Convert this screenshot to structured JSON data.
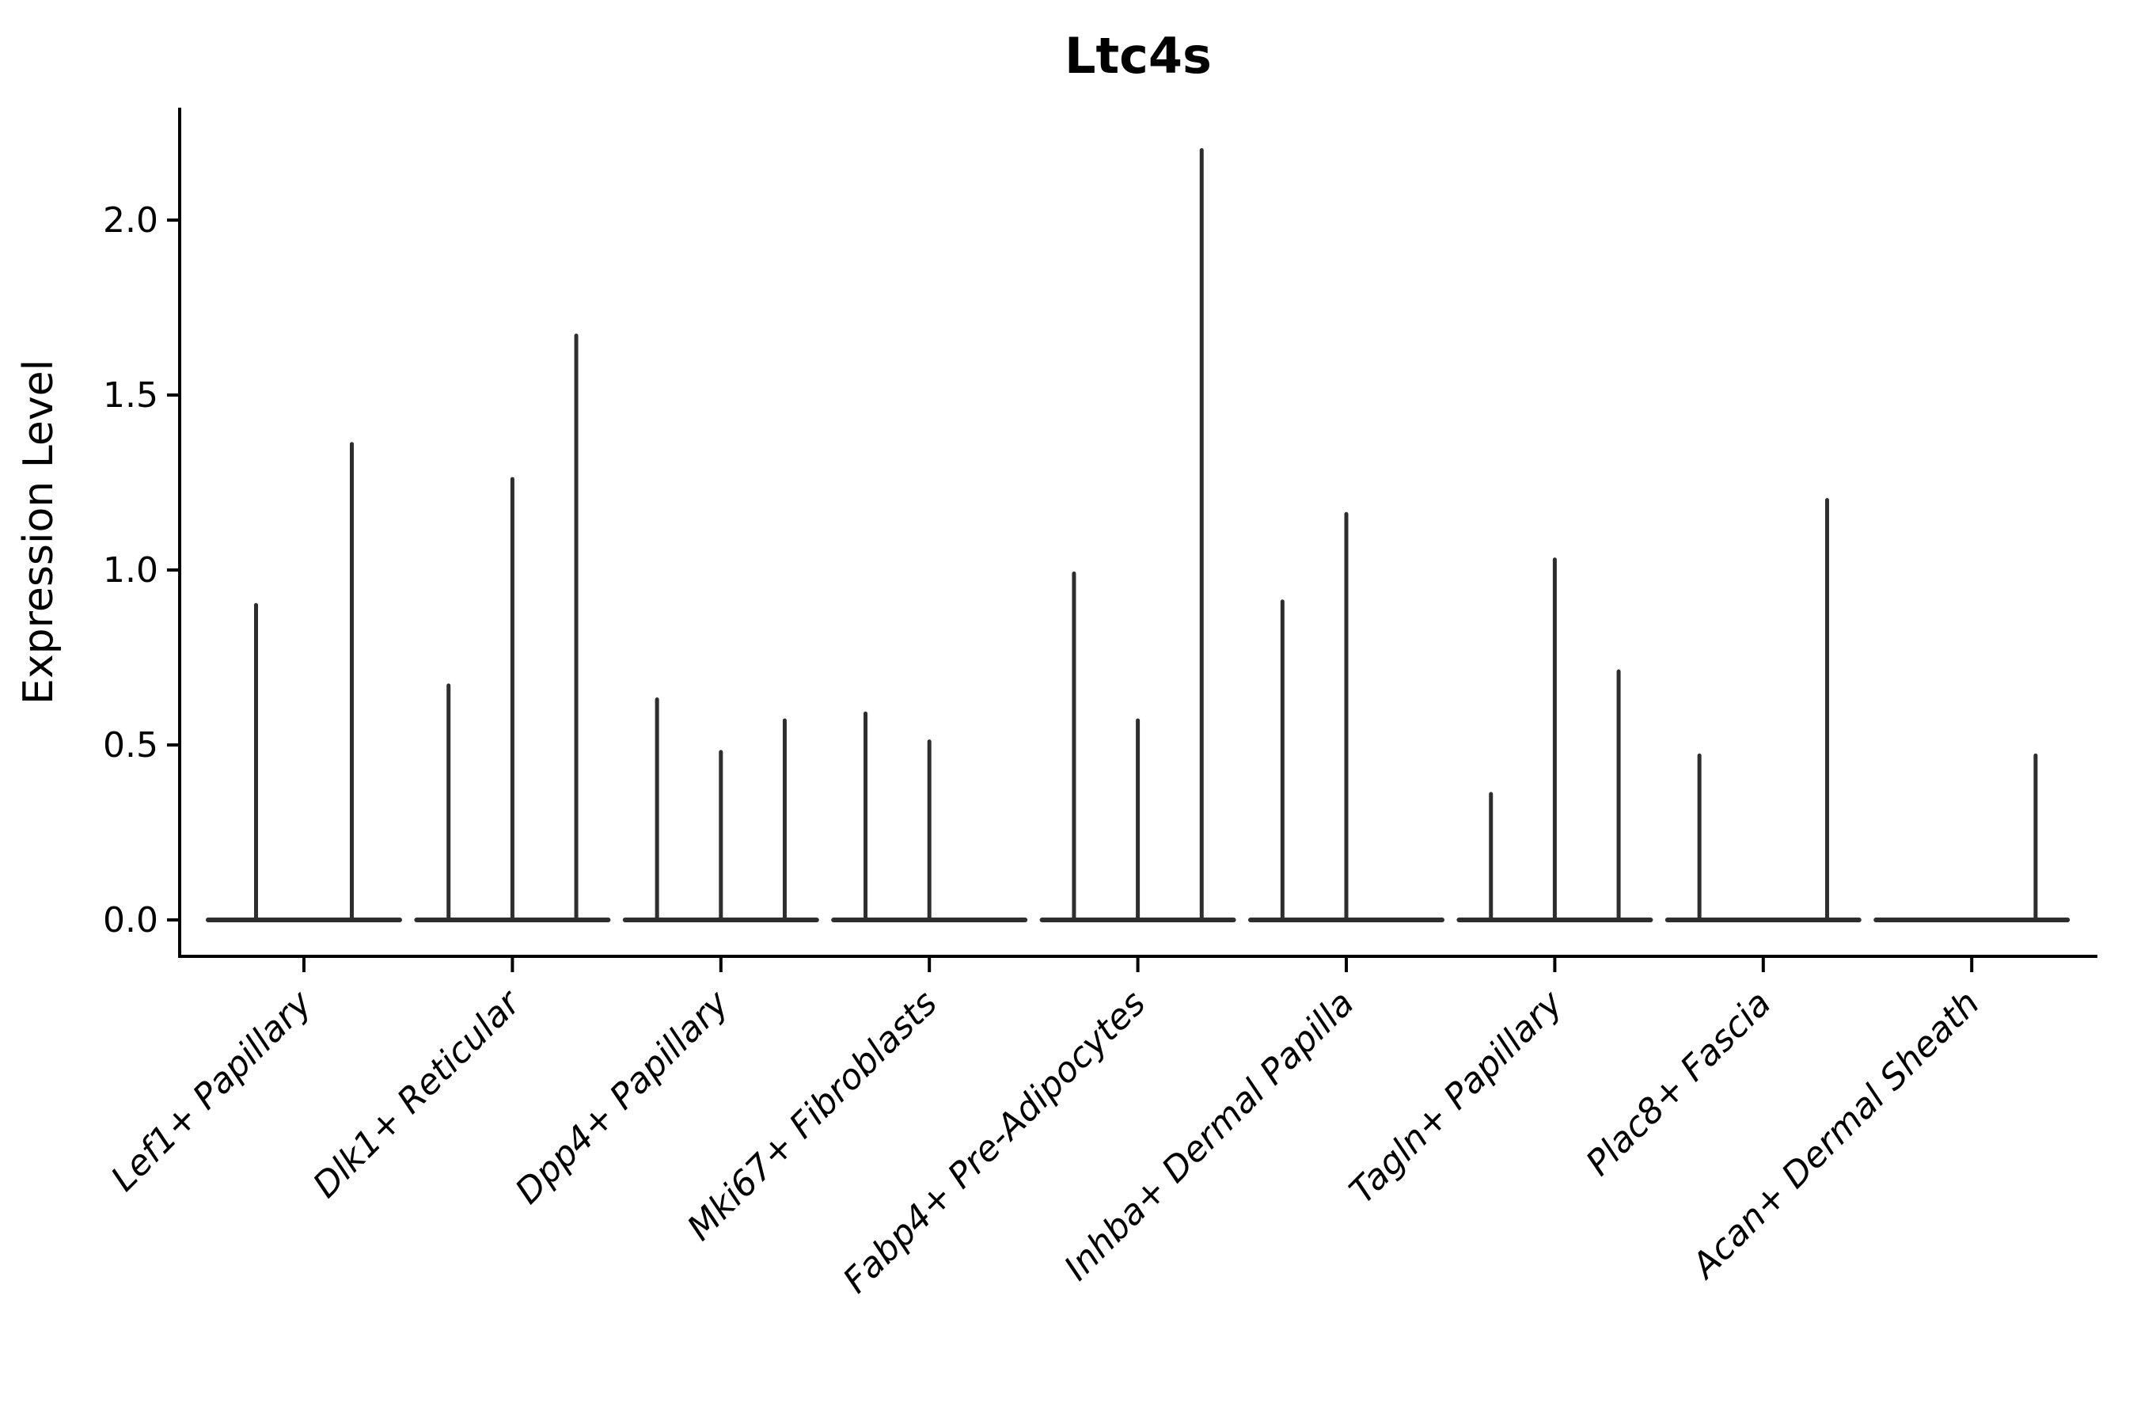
{
  "chart_data": {
    "type": "violin",
    "title": "Ltc4s",
    "ylabel": "Expression Level",
    "xlabel": "",
    "ytick_labels": [
      "0.0",
      "0.5",
      "1.0",
      "1.5",
      "2.0"
    ],
    "ytick_values": [
      0.0,
      0.5,
      1.0,
      1.5,
      2.0
    ],
    "ylim": [
      -0.1,
      2.32
    ],
    "grid": false,
    "legend": "none",
    "categories": [
      "Lef1+ Papillary",
      "Dlk1+ Reticular",
      "Dpp4+ Papillary",
      "Mki67+ Fibroblasts",
      "Fabp4+ Pre-Adipocytes",
      "Inhba+ Dermal Papilla",
      "Tagln+ Papillary",
      "Plac8+ Fascia",
      "Acan+ Dermal Sheath"
    ],
    "violin_max_expression_per_subgroup": [
      [
        0.9,
        1.36
      ],
      [
        0.67,
        1.26,
        1.67
      ],
      [
        0.63,
        0.48,
        0.57
      ],
      [
        0.59,
        0.51,
        0.0
      ],
      [
        0.99,
        0.57,
        2.2
      ],
      [
        0.91,
        1.16,
        0.0
      ],
      [
        0.36,
        1.03,
        0.71
      ],
      [
        0.47,
        0.0,
        1.2
      ],
      [
        0.0,
        0.0,
        0.47
      ]
    ],
    "colors": {
      "violin_stroke": "#2e2e2e",
      "axis": "#000000",
      "text": "#000000",
      "background": "#ffffff"
    }
  }
}
